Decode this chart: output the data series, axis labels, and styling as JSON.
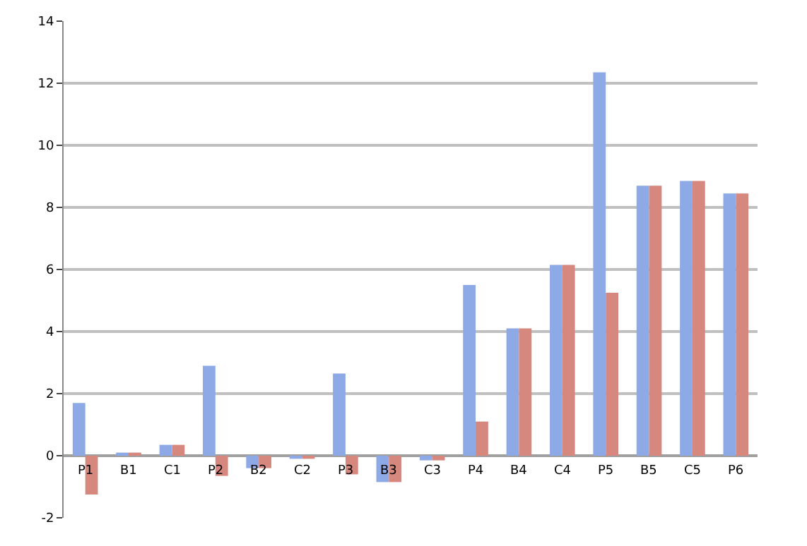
{
  "chart_data": {
    "type": "bar",
    "categories": [
      "P1",
      "B1",
      "C1",
      "P2",
      "B2",
      "C2",
      "P3",
      "B3",
      "C3",
      "P4",
      "B4",
      "C4",
      "P5",
      "B5",
      "C5",
      "P6"
    ],
    "series": [
      {
        "color": "#8eaae6",
        "values": [
          1.7,
          0.1,
          0.35,
          2.9,
          -0.4,
          -0.1,
          2.65,
          -0.85,
          -0.15,
          5.5,
          4.1,
          6.15,
          12.35,
          8.7,
          8.85,
          8.45
        ]
      },
      {
        "color": "#d6877e",
        "values": [
          -1.25,
          0.1,
          0.35,
          -0.65,
          -0.4,
          -0.1,
          -0.6,
          -0.85,
          -0.15,
          1.1,
          4.1,
          6.15,
          5.25,
          8.7,
          8.85,
          8.45
        ]
      }
    ],
    "ylim": [
      -2,
      14
    ],
    "yticks": [
      -2,
      0,
      2,
      4,
      6,
      8,
      10,
      12,
      14
    ],
    "grid": "y",
    "legend": false
  }
}
